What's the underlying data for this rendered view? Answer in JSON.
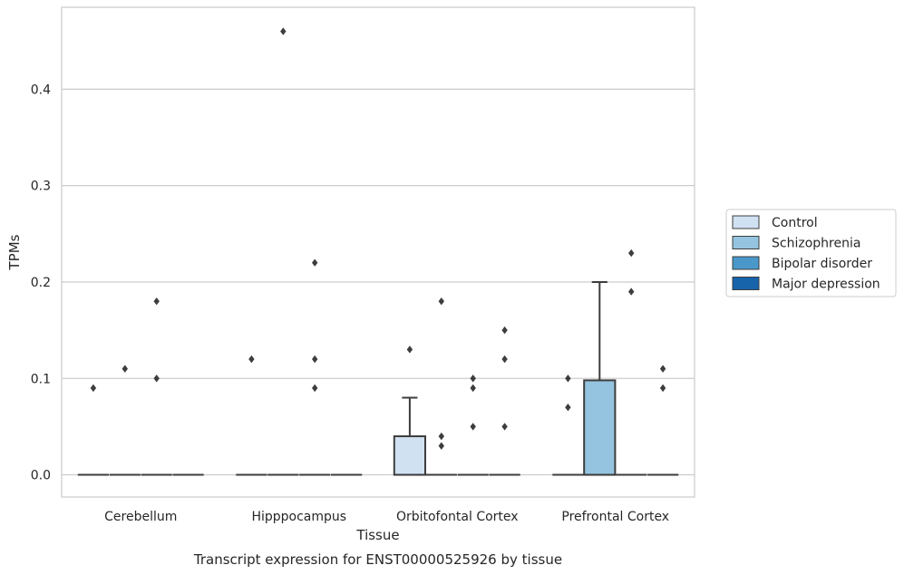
{
  "chart_data": {
    "type": "box",
    "title": "",
    "caption": "Transcript expression for ENST00000525926 by tissue",
    "xlabel": "Tissue",
    "ylabel": "TPMs",
    "ylim": [
      -0.023,
      0.485
    ],
    "yticks": [
      "0.0",
      "0.1",
      "0.2",
      "0.3",
      "0.4"
    ],
    "ytick_values": [
      0.0,
      0.1,
      0.2,
      0.3,
      0.4
    ],
    "grid": true,
    "legend_position": "right",
    "categories": [
      "Cerebellum",
      "Hipppocampus",
      "Orbitofontal Cortex",
      "Prefrontal Cortex"
    ],
    "series": [
      {
        "name": "Control",
        "color": "#d0e1f2",
        "boxes": [
          {
            "q1": 0,
            "median": 0,
            "q3": 0,
            "whislo": 0,
            "whishi": 0,
            "fliers": [
              0.09
            ]
          },
          {
            "q1": 0,
            "median": 0,
            "q3": 0,
            "whislo": 0,
            "whishi": 0,
            "fliers": [
              0.12
            ]
          },
          {
            "q1": 0,
            "median": 0,
            "q3": 0.04,
            "whislo": 0,
            "whishi": 0.08,
            "fliers": [
              0.13
            ]
          },
          {
            "q1": 0,
            "median": 0,
            "q3": 0,
            "whislo": 0,
            "whishi": 0,
            "fliers": [
              0.07,
              0.1
            ]
          }
        ]
      },
      {
        "name": "Schizophrenia",
        "color": "#94c4df",
        "boxes": [
          {
            "q1": 0,
            "median": 0,
            "q3": 0,
            "whislo": 0,
            "whishi": 0,
            "fliers": [
              0.11
            ]
          },
          {
            "q1": 0,
            "median": 0,
            "q3": 0,
            "whislo": 0,
            "whishi": 0,
            "fliers": [
              0.46
            ]
          },
          {
            "q1": 0,
            "median": 0,
            "q3": 0,
            "whislo": 0,
            "whishi": 0,
            "fliers": [
              0.03,
              0.04,
              0.18
            ]
          },
          {
            "q1": 0,
            "median": 0,
            "q3": 0.098,
            "whislo": 0,
            "whishi": 0.2,
            "fliers": []
          }
        ]
      },
      {
        "name": "Bipolar disorder",
        "color": "#4a98c9",
        "boxes": [
          {
            "q1": 0,
            "median": 0,
            "q3": 0,
            "whislo": 0,
            "whishi": 0,
            "fliers": [
              0.1,
              0.18
            ]
          },
          {
            "q1": 0,
            "median": 0,
            "q3": 0,
            "whislo": 0,
            "whishi": 0,
            "fliers": [
              0.09,
              0.12,
              0.22
            ]
          },
          {
            "q1": 0,
            "median": 0,
            "q3": 0,
            "whislo": 0,
            "whishi": 0,
            "fliers": [
              0.05,
              0.09,
              0.1
            ]
          },
          {
            "q1": 0,
            "median": 0,
            "q3": 0,
            "whislo": 0,
            "whishi": 0,
            "fliers": [
              0.19,
              0.23
            ]
          }
        ]
      },
      {
        "name": "Major depression",
        "color": "#1764ab",
        "boxes": [
          {
            "q1": 0,
            "median": 0,
            "q3": 0,
            "whislo": 0,
            "whishi": 0,
            "fliers": []
          },
          {
            "q1": 0,
            "median": 0,
            "q3": 0,
            "whislo": 0,
            "whishi": 0,
            "fliers": []
          },
          {
            "q1": 0,
            "median": 0,
            "q3": 0,
            "whislo": 0,
            "whishi": 0,
            "fliers": [
              0.05,
              0.12,
              0.15
            ]
          },
          {
            "q1": 0,
            "median": 0,
            "q3": 0,
            "whislo": 0,
            "whishi": 0,
            "fliers": [
              0.09,
              0.11
            ]
          }
        ]
      }
    ],
    "legend_colors": {
      "Control": "#d0e1f2",
      "Schizophrenia": "#94c4df",
      "Bipolar disorder": "#4a98c9",
      "Major depression": "#1764ab"
    },
    "line_color": "#3d3d3d",
    "grid_color": "#cccccc"
  }
}
